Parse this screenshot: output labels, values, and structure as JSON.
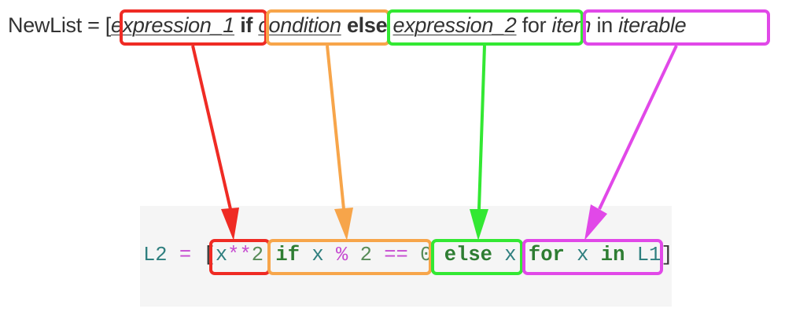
{
  "syntax_line": {
    "prefix": "NewList = [",
    "expression_1": "expression_1",
    "if_kw": "if",
    "condition": "condition",
    "else_kw": "else",
    "expression_2": "expression_2",
    "for_kw": "for",
    "item": "item",
    "in_kw": "in",
    "iterable": "iterable"
  },
  "code_line": {
    "lhs": "L2",
    "assign": "=",
    "open_bracket": "[",
    "x1": "x",
    "pow": "**",
    "two1": "2",
    "if_kw": "if",
    "x2": "x",
    "mod": "%",
    "two2": "2",
    "eq": "==",
    "zero": "0",
    "else_kw": "else",
    "x3": "x",
    "for_kw": "for",
    "x4": "x",
    "in_kw": "in",
    "iterable": "L1",
    "close_bracket": "]"
  },
  "colors": {
    "expression_1": "#ef2b24",
    "condition": "#f7a54a",
    "else_expression": "#33e833",
    "for_clause": "#e148e8"
  }
}
